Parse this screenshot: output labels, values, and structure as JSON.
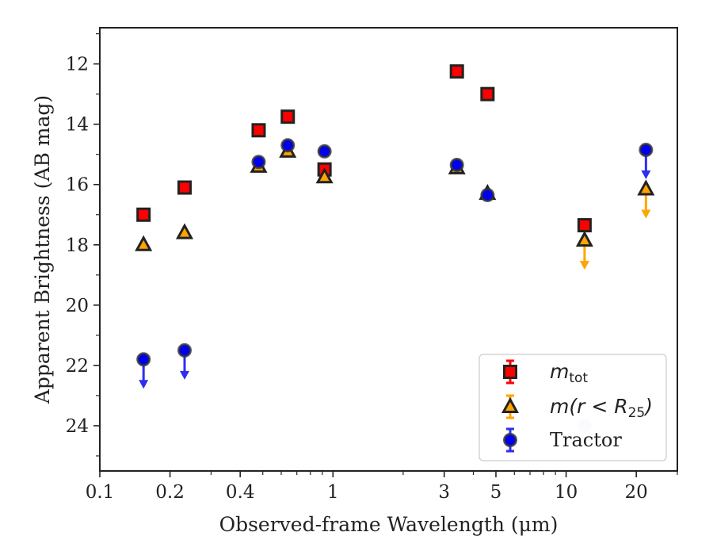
{
  "chart_data": {
    "type": "scatter",
    "title": "",
    "xlabel": "Observed-frame Wavelength (μm)",
    "ylabel": "Apparent Brightness (AB mag)",
    "xscale": "log",
    "xlim": [
      0.1,
      30
    ],
    "ylim": [
      25.5,
      10.8
    ],
    "y_inverted": true,
    "grid": false,
    "legend_position": "lower-right",
    "x_ticks": [
      0.1,
      0.2,
      0.4,
      1,
      3,
      5,
      10,
      20
    ],
    "x_tick_labels": [
      "0.1",
      "0.2",
      "0.4",
      "1",
      "3",
      "5",
      "10",
      "20"
    ],
    "y_ticks": [
      12,
      14,
      16,
      18,
      20,
      22,
      24
    ],
    "y_tick_labels": [
      "12",
      "14",
      "16",
      "18",
      "20",
      "22",
      "24"
    ],
    "series": [
      {
        "name": "m_tot",
        "legend_main": "m",
        "legend_sub": "tot",
        "marker": "square",
        "color": "#ff0000",
        "edge_color": "#222222",
        "points": [
          {
            "x": 0.154,
            "y": 17.0
          },
          {
            "x": 0.231,
            "y": 16.1
          },
          {
            "x": 0.48,
            "y": 14.2
          },
          {
            "x": 0.64,
            "y": 13.75
          },
          {
            "x": 0.92,
            "y": 15.5
          },
          {
            "x": 3.4,
            "y": 12.25
          },
          {
            "x": 4.6,
            "y": 13.0
          },
          {
            "x": 12.0,
            "y": 17.35
          }
        ]
      },
      {
        "name": "m(r < R_25)",
        "legend_main": "m(r < R",
        "legend_sub": "25",
        "legend_close": ")",
        "marker": "triangle",
        "color": "#ffa500",
        "edge_color": "#222222",
        "points": [
          {
            "x": 0.154,
            "y": 18.0
          },
          {
            "x": 0.231,
            "y": 17.6
          },
          {
            "x": 0.48,
            "y": 15.4
          },
          {
            "x": 0.64,
            "y": 14.9
          },
          {
            "x": 0.92,
            "y": 15.75
          },
          {
            "x": 3.4,
            "y": 15.45
          },
          {
            "x": 4.6,
            "y": 16.3
          },
          {
            "x": 12.0,
            "y": 17.85,
            "upper_limit": true
          },
          {
            "x": 22.0,
            "y": 16.15,
            "upper_limit": true
          }
        ]
      },
      {
        "name": "Tractor",
        "marker": "circle",
        "color": "#0000ee",
        "edge_color": "#333333",
        "points": [
          {
            "x": 0.154,
            "y": 21.8,
            "upper_limit": true
          },
          {
            "x": 0.231,
            "y": 21.5,
            "upper_limit": true
          },
          {
            "x": 0.48,
            "y": 15.25
          },
          {
            "x": 0.64,
            "y": 14.7
          },
          {
            "x": 0.92,
            "y": 14.9
          },
          {
            "x": 3.4,
            "y": 15.35
          },
          {
            "x": 4.6,
            "y": 16.35
          },
          {
            "x": 12.0,
            "y": 24.0,
            "faded": true
          },
          {
            "x": 22.0,
            "y": 14.85,
            "upper_limit": true
          }
        ]
      }
    ]
  }
}
